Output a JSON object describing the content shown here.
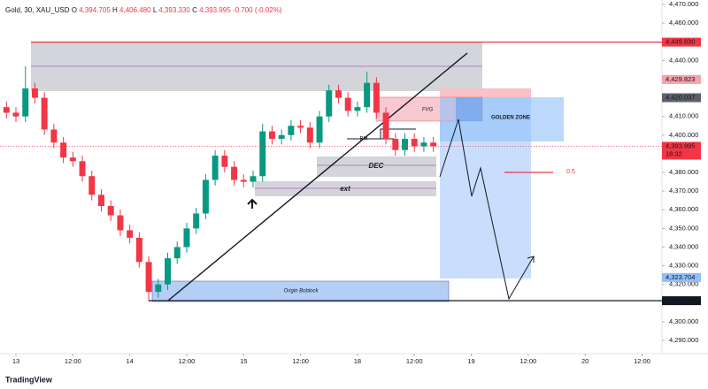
{
  "chart_data": {
    "type": "candlestick",
    "header": {
      "symbol": "Gold, 30, XAU_USD",
      "ohlc": [
        {
          "key": "O",
          "value": "4,394.705"
        },
        {
          "key": "H",
          "value": "4,406.480"
        },
        {
          "key": "L",
          "value": "4,393.330"
        },
        {
          "key": "C",
          "value": "4,393.995"
        }
      ],
      "change": "-0.700 (-0.02%)"
    },
    "x": [
      -2,
      0,
      2,
      4,
      6,
      8,
      10,
      12,
      14,
      16,
      18,
      20,
      22,
      24,
      26,
      28,
      30,
      32,
      34,
      36,
      38,
      40,
      42,
      44,
      46,
      48,
      50,
      52,
      54,
      56,
      58,
      60,
      62,
      64,
      66,
      68,
      70,
      72,
      74,
      76,
      78,
      80,
      82,
      84,
      86,
      88
    ],
    "open": [
      4415,
      4412,
      4410,
      4425,
      4420,
      4403,
      4396,
      4388,
      4386,
      4378,
      4368,
      4362,
      4357,
      4349,
      4345,
      4332,
      4316,
      4320,
      4334,
      4340,
      4350,
      4358,
      4376,
      4389,
      4383,
      4376,
      4375,
      4378,
      4402,
      4398,
      4400,
      4405,
      4404,
      4396,
      4410,
      4424,
      4420,
      4413,
      4415,
      4428,
      4412,
      4398,
      4392,
      4398,
      4394,
      4396
    ],
    "high": [
      4418,
      4415,
      4437,
      4428,
      4423,
      4406,
      4399,
      4391,
      4389,
      4381,
      4371,
      4365,
      4360,
      4352,
      4348,
      4335,
      4323,
      4337,
      4343,
      4353,
      4361,
      4379,
      4392,
      4392,
      4386,
      4379,
      4381,
      4406,
      4405,
      4403,
      4408,
      4408,
      4407,
      4413,
      4427,
      4427,
      4423,
      4418,
      4434,
      4431,
      4415,
      4401,
      4401,
      4401,
      4399,
      4399
    ],
    "low": [
      4409,
      4407,
      4407,
      4417,
      4400,
      4393,
      4385,
      4383,
      4375,
      4365,
      4359,
      4354,
      4346,
      4342,
      4329,
      4311,
      4313,
      4317,
      4331,
      4337,
      4347,
      4355,
      4373,
      4380,
      4373,
      4372,
      4372,
      4375,
      4395,
      4395,
      4397,
      4401,
      4393,
      4393,
      4407,
      4417,
      4410,
      4410,
      4412,
      4409,
      4395,
      4389,
      4389,
      4391,
      4391,
      4391
    ],
    "close": [
      4412,
      4410,
      4425,
      4420,
      4403,
      4396,
      4388,
      4386,
      4378,
      4368,
      4362,
      4357,
      4349,
      4345,
      4332,
      4316,
      4320,
      4334,
      4340,
      4350,
      4358,
      4376,
      4389,
      4383,
      4376,
      4375,
      4378,
      4402,
      4398,
      4400,
      4405,
      4404,
      4396,
      4410,
      4424,
      4420,
      4413,
      4415,
      4428,
      4412,
      4398,
      4392,
      4398,
      4394,
      4396,
      4394
    ],
    "up_color": "#089981",
    "down_color": "#f23645",
    "xlim": [
      -3.36,
      136.2
    ],
    "xticks": [
      {
        "value": 0,
        "label": "13"
      },
      {
        "value": 12,
        "label": "12:00"
      },
      {
        "value": 24,
        "label": "14"
      },
      {
        "value": 36,
        "label": "12:00"
      },
      {
        "value": 48,
        "label": "15"
      },
      {
        "value": 60,
        "label": "12:00"
      },
      {
        "value": 72,
        "label": "18"
      },
      {
        "value": 84,
        "label": "12:00"
      },
      {
        "value": 96,
        "label": "19"
      },
      {
        "value": 108,
        "label": "12:00"
      },
      {
        "value": 120,
        "label": "20"
      },
      {
        "value": 132,
        "label": "12:00"
      }
    ],
    "ylim": [
      4282.9,
      4472.4
    ],
    "yticks": [
      {
        "value": 4470,
        "label": "4,470.000"
      },
      {
        "value": 4460,
        "label": "4,460.000"
      },
      {
        "value": 4440,
        "label": "4,440.000"
      },
      {
        "value": 4430,
        "label": "4,430.000"
      },
      {
        "value": 4410,
        "label": "4,410.000"
      },
      {
        "value": 4400,
        "label": "4,400.000"
      },
      {
        "value": 4380,
        "label": "4,380.000"
      },
      {
        "value": 4370,
        "label": "4,370.000"
      },
      {
        "value": 4360,
        "label": "4,360.000"
      },
      {
        "value": 4350,
        "label": "4,350.000"
      },
      {
        "value": 4340,
        "label": "4,340.000"
      },
      {
        "value": 4330,
        "label": "4,330.000"
      },
      {
        "value": 4320,
        "label": "4,320.000"
      },
      {
        "value": 4300,
        "label": "4,300.000"
      },
      {
        "value": 4290,
        "label": "4,290.000"
      }
    ],
    "price_tags": [
      {
        "value": 4449.83,
        "label": "4,449.830",
        "color": "#f23645",
        "line": "solid"
      },
      {
        "value": 4429.823,
        "label": "4,429.823",
        "color": "#f7a1aa"
      },
      {
        "value": 4420.037,
        "label": "4,420.037",
        "color": "#5d606b"
      },
      {
        "value": 4393.995,
        "label": "4,393.995",
        "color": "#f23645",
        "line": "dotted",
        "time": "18:32"
      },
      {
        "value": 4323.704,
        "label": "4,323.704",
        "color": "#90bff9"
      },
      {
        "value": 4311.27,
        "label": "4,311.270",
        "color": "#131722",
        "line": "solid"
      }
    ],
    "annotations": {
      "fvg": "FVG",
      "golden_zone": "GOLDEN ZONE",
      "bm": "BM",
      "dec": "DEC",
      "ext": "ext",
      "origin": "Origin Boblock",
      "fib": "0.5"
    },
    "brand": "TradingView"
  }
}
